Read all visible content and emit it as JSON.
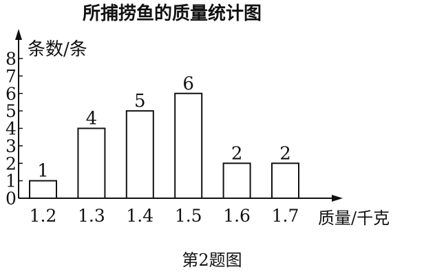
{
  "chart_data": {
    "type": "bar",
    "title": "所捕捞鱼的质量统计图",
    "ylabel": "条数/条",
    "xlabel": "质量/千克",
    "categories": [
      "1.2",
      "1.3",
      "1.4",
      "1.5",
      "1.6",
      "1.7"
    ],
    "values": [
      1,
      4,
      5,
      6,
      2,
      2
    ],
    "data_labels": [
      "1",
      "4",
      "5",
      "6",
      "2",
      "2"
    ],
    "yticks": [
      "0",
      "1",
      "2",
      "3",
      "4",
      "5",
      "6",
      "7",
      "8"
    ],
    "ylim": [
      0,
      8
    ],
    "grid": false,
    "bar_fill": "#ffffff",
    "bar_stroke": "#111111"
  },
  "caption": "第2题图"
}
